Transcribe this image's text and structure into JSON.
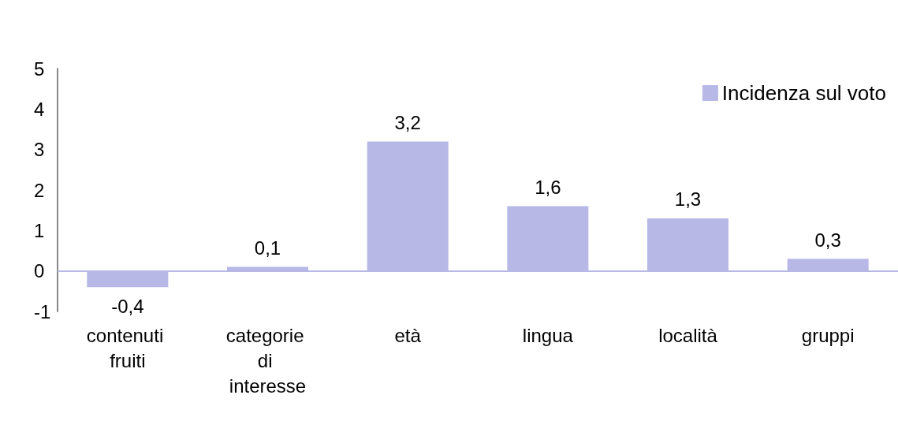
{
  "chart_data": {
    "type": "bar",
    "categories": [
      "contenuti fruiti",
      "categorie di interesse",
      "età",
      "lingua",
      "località",
      "gruppi"
    ],
    "series": [
      {
        "name": "Incidenza sul voto",
        "color": "#b8b8e6",
        "values": [
          -0.4,
          0.1,
          3.2,
          1.6,
          1.3,
          0.3
        ],
        "value_labels": [
          "-0,4",
          "0,1",
          "3,2",
          "1,6",
          "1,3",
          "0,3"
        ]
      }
    ],
    "ylim": [
      -1,
      5
    ],
    "yticks": [
      -1,
      0,
      1,
      2,
      3,
      4,
      5
    ],
    "ref_lines": [
      {
        "axis": "y",
        "value": 0,
        "color": "#b8b8e6"
      }
    ],
    "grid": false,
    "legend": "top right"
  }
}
